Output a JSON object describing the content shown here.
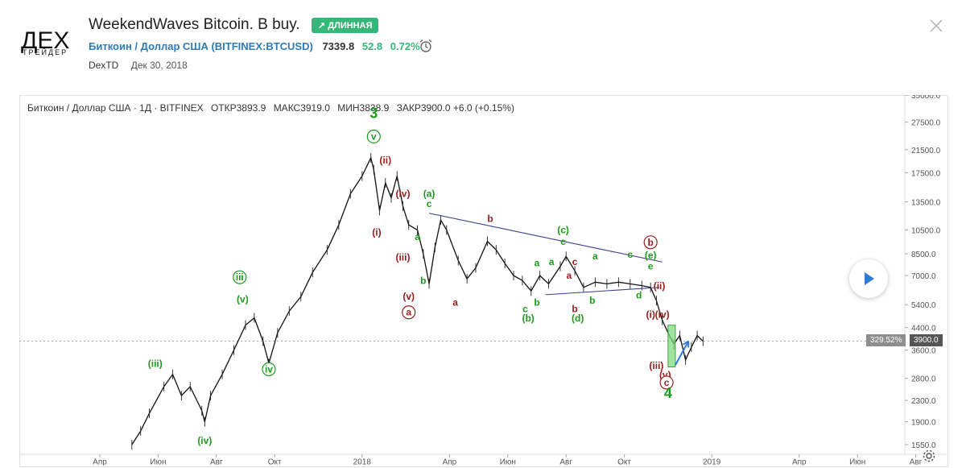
{
  "header": {
    "logo_text": "ДЕХ",
    "logo_subtext": "ТРЕЙДЕР",
    "title": "WeekendWaves Bitcoin. B buy.",
    "badge": "↗ ДЛИННАЯ",
    "symbol": "Биткоин / Доллар США (BITFINEX:BTCUSD)",
    "price": "7339.8",
    "change": "52.8",
    "change_pct": "0.72%",
    "author": "DexTD",
    "date": "Дек 30, 2018"
  },
  "ohlc_bar": {
    "instrument": "Биткоин / Доллар США · 1Д · BITFINEX",
    "open": "ОТКР3893.9",
    "high": "МАКС3919.0",
    "low": "МИН3838.9",
    "close": "ЗАКР3900.0 +6.0 (+0.15%)"
  },
  "price_line": {
    "pct_label": "329.52%",
    "price_label": "3900.0",
    "value": 3900
  },
  "colors": {
    "green": "#1c9a1c",
    "red": "#9b1b1b",
    "trend": "#3b3b8f",
    "arrow": "#2e7bdb",
    "box": "#7fdc7f"
  },
  "chart_data": {
    "type": "line",
    "title": "Биткоин / Доллар США · 1Д · BITFINEX",
    "yscale": "log",
    "ylim": [
      1550,
      35000
    ],
    "y_ticks": [
      35000,
      27500,
      21500,
      17500,
      13500,
      10500,
      8500,
      7000,
      5400,
      4400,
      3600,
      2800,
      2300,
      1900,
      1550
    ],
    "y_tick_labels": [
      "35000.0",
      "27500.0",
      "21500.0",
      "17500.0",
      "13500.0",
      "10500.0",
      "8500.0",
      "7000.0",
      "5400.0",
      "4400.0",
      "3600.0",
      "2800.0",
      "2300.0",
      "1900.0",
      "1550.0"
    ],
    "x_ticks": [
      {
        "label": "Апр",
        "t": 0.0
      },
      {
        "label": "Июн",
        "t": 2.0
      },
      {
        "label": "Авг",
        "t": 4.0
      },
      {
        "label": "Окт",
        "t": 6.0
      },
      {
        "label": "2018",
        "t": 9.0
      },
      {
        "label": "Апр",
        "t": 12.0
      },
      {
        "label": "Июн",
        "t": 14.0
      },
      {
        "label": "Авг",
        "t": 16.0
      },
      {
        "label": "Окт",
        "t": 18.0
      },
      {
        "label": "2019",
        "t": 21.0
      },
      {
        "label": "Апр",
        "t": 24.0
      },
      {
        "label": "Июн",
        "t": 26.0
      },
      {
        "label": "Авг",
        "t": 28.0
      }
    ],
    "series": [
      {
        "name": "BTCUSD",
        "points": [
          [
            1.1,
            1550
          ],
          [
            1.4,
            1750
          ],
          [
            1.7,
            2050
          ],
          [
            2.2,
            2600
          ],
          [
            2.5,
            2900
          ],
          [
            2.8,
            2400
          ],
          [
            3.1,
            2600
          ],
          [
            3.5,
            2100
          ],
          [
            3.6,
            1900
          ],
          [
            3.8,
            2400
          ],
          [
            4.2,
            2900
          ],
          [
            4.6,
            3600
          ],
          [
            5.0,
            4500
          ],
          [
            5.3,
            4800
          ],
          [
            5.6,
            3900
          ],
          [
            5.8,
            3200
          ],
          [
            6.1,
            4200
          ],
          [
            6.5,
            5100
          ],
          [
            6.9,
            5800
          ],
          [
            7.3,
            7200
          ],
          [
            7.8,
            8800
          ],
          [
            8.2,
            11000
          ],
          [
            8.6,
            14500
          ],
          [
            9.0,
            17000
          ],
          [
            9.3,
            20000
          ],
          [
            9.4,
            18000
          ],
          [
            9.6,
            12500
          ],
          [
            9.8,
            16000
          ],
          [
            10.0,
            14000
          ],
          [
            10.2,
            17000
          ],
          [
            10.4,
            13000
          ],
          [
            10.6,
            11000
          ],
          [
            10.9,
            10500
          ],
          [
            11.1,
            8500
          ],
          [
            11.3,
            6500
          ],
          [
            11.5,
            9000
          ],
          [
            11.7,
            11500
          ],
          [
            11.9,
            10500
          ],
          [
            12.3,
            8000
          ],
          [
            12.6,
            6800
          ],
          [
            12.9,
            7500
          ],
          [
            13.3,
            9500
          ],
          [
            13.6,
            8800
          ],
          [
            13.9,
            7800
          ],
          [
            14.2,
            7000
          ],
          [
            14.5,
            6700
          ],
          [
            14.8,
            6100
          ],
          [
            15.1,
            7000
          ],
          [
            15.4,
            6500
          ],
          [
            15.8,
            7600
          ],
          [
            16.0,
            8300
          ],
          [
            16.3,
            7300
          ],
          [
            16.6,
            6300
          ],
          [
            17.0,
            6600
          ],
          [
            17.4,
            6500
          ],
          [
            17.8,
            6600
          ],
          [
            18.2,
            6500
          ],
          [
            18.6,
            6400
          ],
          [
            18.9,
            6300
          ],
          [
            19.1,
            5600
          ],
          [
            19.3,
            4700
          ],
          [
            19.5,
            4200
          ],
          [
            19.7,
            3800
          ],
          [
            19.9,
            4100
          ],
          [
            20.1,
            3300
          ],
          [
            20.3,
            3700
          ],
          [
            20.5,
            4100
          ],
          [
            20.7,
            3900
          ]
        ]
      }
    ],
    "trendlines": [
      {
        "from": [
          11.3,
          12200
        ],
        "to": [
          19.3,
          7900
        ]
      },
      {
        "from": [
          15.3,
          5900
        ],
        "to": [
          19.2,
          6300
        ]
      }
    ],
    "wave_labels": [
      {
        "text": "(iii)",
        "t": 1.9,
        "y": 3100,
        "color": "green"
      },
      {
        "text": "(iv)",
        "t": 3.6,
        "y": 1560,
        "color": "green"
      },
      {
        "text": "(v)",
        "t": 4.9,
        "y": 5500,
        "color": "green"
      },
      {
        "text": "iii",
        "t": 4.8,
        "y": 6700,
        "color": "green",
        "circled": true
      },
      {
        "text": "iv",
        "t": 5.8,
        "y": 2950,
        "color": "green",
        "circled": true
      },
      {
        "text": "3",
        "t": 9.4,
        "y": 28500,
        "color": "green",
        "big": true
      },
      {
        "text": "v",
        "t": 9.4,
        "y": 23500,
        "color": "green",
        "circled": true
      },
      {
        "text": "(i)",
        "t": 9.5,
        "y": 10000,
        "color": "red"
      },
      {
        "text": "(ii)",
        "t": 9.8,
        "y": 19000,
        "color": "red"
      },
      {
        "text": "(iv)",
        "t": 10.4,
        "y": 14100,
        "color": "red"
      },
      {
        "text": "(iii)",
        "t": 10.4,
        "y": 8000,
        "color": "red"
      },
      {
        "text": "(v)",
        "t": 10.6,
        "y": 5650,
        "color": "red"
      },
      {
        "text": "a",
        "t": 10.6,
        "y": 4900,
        "color": "red",
        "circled": true
      },
      {
        "text": "(a)",
        "t": 11.3,
        "y": 14100,
        "color": "green"
      },
      {
        "text": "c",
        "t": 11.3,
        "y": 12900,
        "color": "green"
      },
      {
        "text": "a",
        "t": 10.9,
        "y": 9600,
        "color": "green"
      },
      {
        "text": "b",
        "t": 11.1,
        "y": 6500,
        "color": "green"
      },
      {
        "text": "a",
        "t": 12.2,
        "y": 5350,
        "color": "red"
      },
      {
        "text": "b",
        "t": 13.4,
        "y": 11300,
        "color": "red"
      },
      {
        "text": "c",
        "t": 14.6,
        "y": 5050,
        "color": "green"
      },
      {
        "text": "(b)",
        "t": 14.7,
        "y": 4650,
        "color": "green"
      },
      {
        "text": "b",
        "t": 15.0,
        "y": 5350,
        "color": "green"
      },
      {
        "text": "a",
        "t": 15.0,
        "y": 7600,
        "color": "green"
      },
      {
        "text": "(c)",
        "t": 15.9,
        "y": 10200,
        "color": "green"
      },
      {
        "text": "c",
        "t": 15.9,
        "y": 9200,
        "color": "green"
      },
      {
        "text": "a",
        "t": 15.5,
        "y": 7700,
        "color": "green"
      },
      {
        "text": "c",
        "t": 16.3,
        "y": 7700,
        "color": "red"
      },
      {
        "text": "a",
        "t": 16.1,
        "y": 6800,
        "color": "red"
      },
      {
        "text": "b",
        "t": 16.3,
        "y": 5050,
        "color": "red"
      },
      {
        "text": "(d)",
        "t": 16.4,
        "y": 4650,
        "color": "green"
      },
      {
        "text": "a",
        "t": 17.0,
        "y": 8100,
        "color": "green"
      },
      {
        "text": "b",
        "t": 16.9,
        "y": 5450,
        "color": "green"
      },
      {
        "text": "c",
        "t": 18.2,
        "y": 8200,
        "color": "green"
      },
      {
        "text": "d",
        "t": 18.5,
        "y": 5700,
        "color": "green"
      },
      {
        "text": "e",
        "t": 18.9,
        "y": 7400,
        "color": "green"
      },
      {
        "text": "(e)",
        "t": 18.9,
        "y": 8150,
        "color": "green"
      },
      {
        "text": "b",
        "t": 18.9,
        "y": 9150,
        "color": "red",
        "circled": true
      },
      {
        "text": "(ii)",
        "t": 19.2,
        "y": 6200,
        "color": "red"
      },
      {
        "text": "(i)",
        "t": 18.9,
        "y": 4800,
        "color": "red"
      },
      {
        "text": "(iv)",
        "t": 19.3,
        "y": 4800,
        "color": "red"
      },
      {
        "text": "(iii)",
        "t": 19.1,
        "y": 3050,
        "color": "red"
      },
      {
        "text": "(v)",
        "t": 19.4,
        "y": 2800,
        "color": "red"
      },
      {
        "text": "c",
        "t": 19.45,
        "y": 2620,
        "color": "red",
        "circled": true
      },
      {
        "text": "4",
        "t": 19.5,
        "y": 2350,
        "color": "green",
        "big": true
      }
    ],
    "buy_zone": {
      "t0": 19.5,
      "t1": 19.75,
      "y_top": 4500,
      "y_bottom": 3100
    },
    "forecast_arrow": {
      "from": [
        19.75,
        3150
      ],
      "to": [
        20.2,
        3900
      ]
    }
  }
}
